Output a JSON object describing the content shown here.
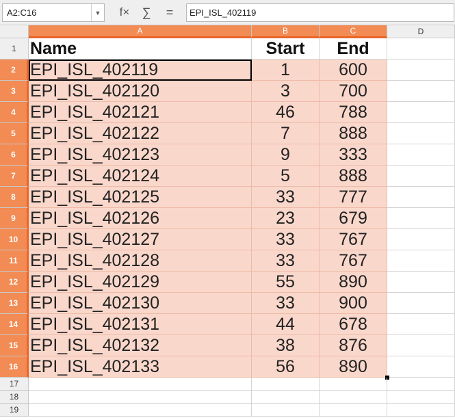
{
  "formula_bar": {
    "name_box": "A2:C16",
    "function_wizard_icon": "f×",
    "sum_icon": "∑",
    "equals_icon": "=",
    "formula": "EPI_ISL_402119"
  },
  "columns": [
    {
      "label": "A",
      "selected": true
    },
    {
      "label": "B",
      "selected": true
    },
    {
      "label": "C",
      "selected": true
    },
    {
      "label": "D",
      "selected": false
    }
  ],
  "header_row": {
    "row": "1",
    "name": "Name",
    "start": "Start",
    "end": "End"
  },
  "rows": [
    {
      "row": "2",
      "name": "EPI_ISL_402119",
      "start": "1",
      "end": "600"
    },
    {
      "row": "3",
      "name": "EPI_ISL_402120",
      "start": "3",
      "end": "700"
    },
    {
      "row": "4",
      "name": "EPI_ISL_402121",
      "start": "46",
      "end": "788"
    },
    {
      "row": "5",
      "name": "EPI_ISL_402122",
      "start": "7",
      "end": "888"
    },
    {
      "row": "6",
      "name": "EPI_ISL_402123",
      "start": "9",
      "end": "333"
    },
    {
      "row": "7",
      "name": "EPI_ISL_402124",
      "start": "5",
      "end": "888"
    },
    {
      "row": "8",
      "name": "EPI_ISL_402125",
      "start": "33",
      "end": "777"
    },
    {
      "row": "9",
      "name": "EPI_ISL_402126",
      "start": "23",
      "end": "679"
    },
    {
      "row": "10",
      "name": "EPI_ISL_402127",
      "start": "33",
      "end": "767"
    },
    {
      "row": "11",
      "name": "EPI_ISL_402128",
      "start": "33",
      "end": "767"
    },
    {
      "row": "12",
      "name": "EPI_ISL_402129",
      "start": "55",
      "end": "890"
    },
    {
      "row": "13",
      "name": "EPI_ISL_402130",
      "start": "33",
      "end": "900"
    },
    {
      "row": "14",
      "name": "EPI_ISL_402131",
      "start": "44",
      "end": "678"
    },
    {
      "row": "15",
      "name": "EPI_ISL_402132",
      "start": "38",
      "end": "876"
    },
    {
      "row": "16",
      "name": "EPI_ISL_402133",
      "start": "56",
      "end": "890"
    }
  ],
  "empty_rows": [
    "17",
    "18",
    "19"
  ],
  "colors": {
    "selection_header": "#f28b54",
    "selection_fill": "#f9d7cb"
  }
}
